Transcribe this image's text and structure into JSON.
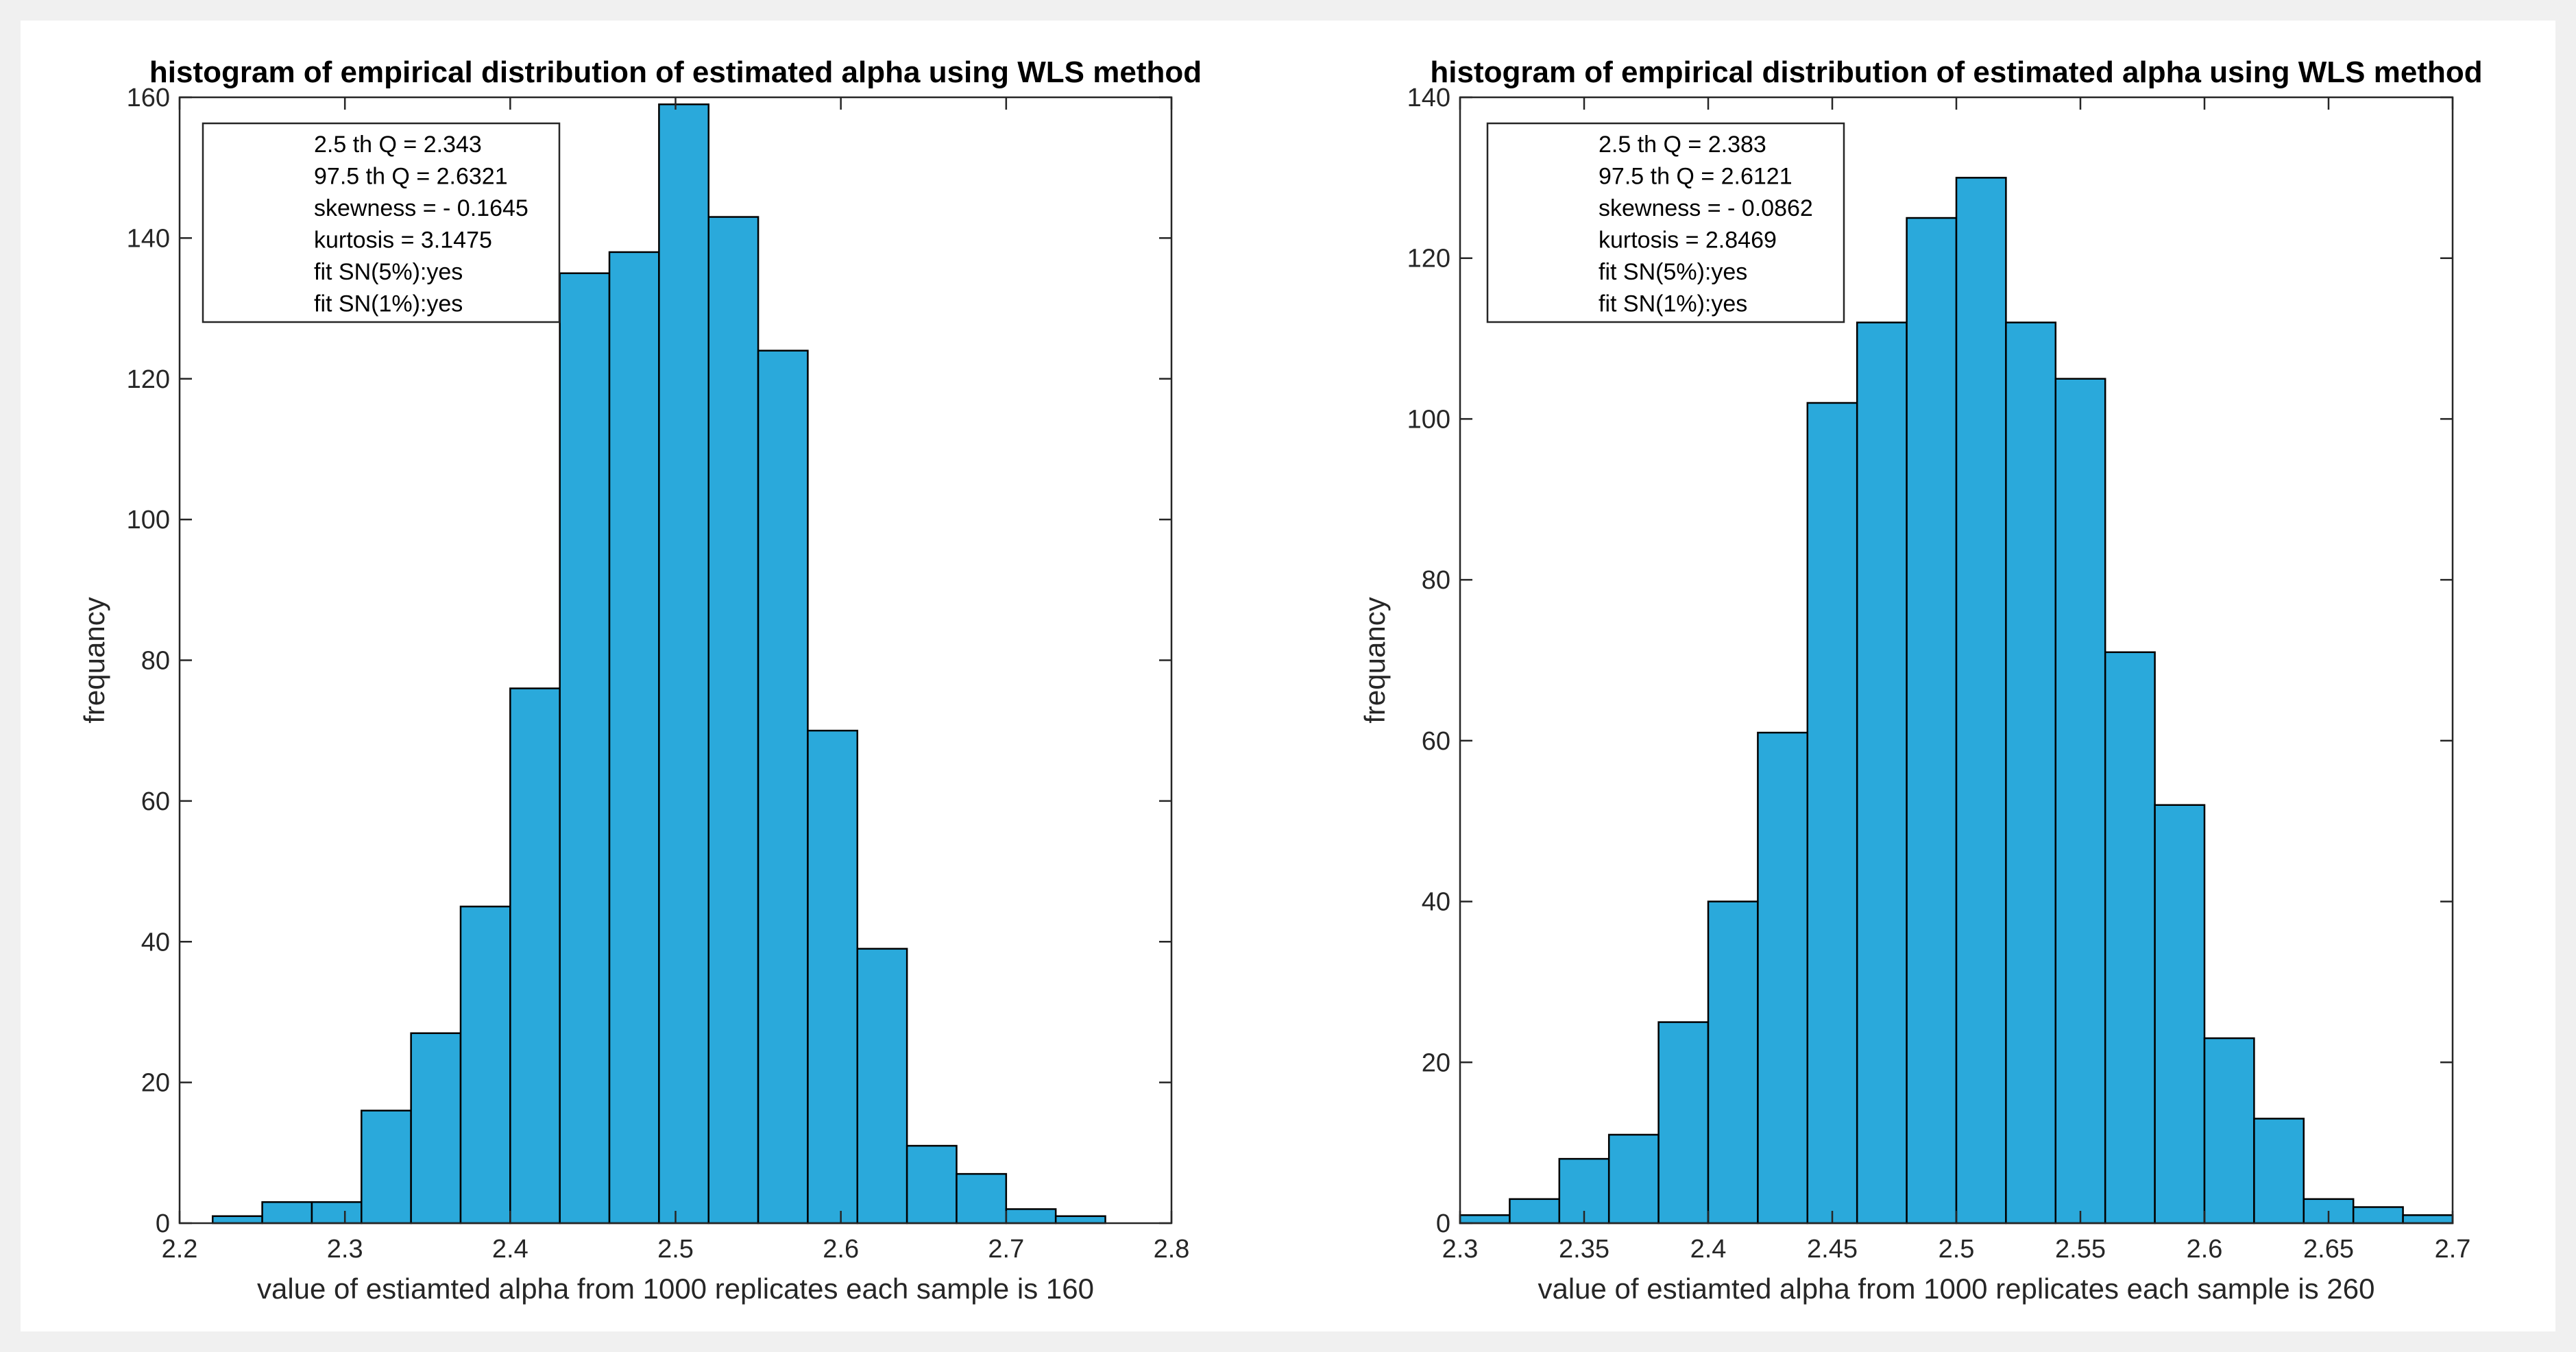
{
  "chart_data": [
    {
      "type": "bar",
      "title": "histogram of empirical distribution of estimated alpha using WLS method",
      "xlabel": "value of estiamted alpha from 1000 replicates each sample is 160",
      "ylabel": "frequancy",
      "xlim": [
        2.2,
        2.8
      ],
      "ylim": [
        0,
        160
      ],
      "xticks": [
        2.2,
        2.3,
        2.4,
        2.5,
        2.6,
        2.7,
        2.8
      ],
      "xtick_labels": [
        "2.2",
        "2.3",
        "2.4",
        "2.5",
        "2.6",
        "2.7",
        "2.8"
      ],
      "yticks": [
        0,
        20,
        40,
        60,
        80,
        100,
        120,
        140,
        160
      ],
      "ytick_labels": [
        "0",
        "20",
        "40",
        "60",
        "80",
        "100",
        "120",
        "140",
        "160"
      ],
      "bin_edges": [
        2.22,
        2.25,
        2.28,
        2.31,
        2.34,
        2.37,
        2.4,
        2.43,
        2.46,
        2.49,
        2.52,
        2.55,
        2.58,
        2.61,
        2.64,
        2.67,
        2.7,
        2.73,
        2.76
      ],
      "values": [
        1,
        3,
        3,
        16,
        27,
        45,
        76,
        135,
        138,
        159,
        143,
        124,
        70,
        39,
        11,
        7,
        2,
        1
      ],
      "bar_color": "#2aa9db",
      "stats": [
        "2.5 th Q = 2.343",
        "97.5 th Q = 2.6321",
        "skewness = - 0.1645",
        "kurtosis = 3.1475",
        "fit SN(5%):yes",
        "fit SN(1%):yes"
      ]
    },
    {
      "type": "bar",
      "title": "histogram of empirical distribution of estimated alpha using WLS method",
      "xlabel": "value of estiamted alpha from 1000 replicates each sample is 260",
      "ylabel": "frequancy",
      "xlim": [
        2.3,
        2.7
      ],
      "ylim": [
        0,
        140
      ],
      "xticks": [
        2.3,
        2.35,
        2.4,
        2.45,
        2.5,
        2.55,
        2.6,
        2.65,
        2.7
      ],
      "xtick_labels": [
        "2.3",
        "2.35",
        "2.4",
        "2.45",
        "2.5",
        "2.55",
        "2.6",
        "2.65",
        "2.7"
      ],
      "yticks": [
        0,
        20,
        40,
        60,
        80,
        100,
        120,
        140
      ],
      "ytick_labels": [
        "0",
        "20",
        "40",
        "60",
        "80",
        "100",
        "120",
        "140"
      ],
      "bin_edges": [
        2.3,
        2.32,
        2.34,
        2.36,
        2.38,
        2.4,
        2.42,
        2.44,
        2.46,
        2.48,
        2.5,
        2.52,
        2.54,
        2.56,
        2.58,
        2.6,
        2.62,
        2.64,
        2.66,
        2.68,
        2.7
      ],
      "values": [
        1,
        3,
        8,
        11,
        25,
        40,
        61,
        102,
        112,
        125,
        130,
        112,
        105,
        71,
        52,
        23,
        13,
        3,
        2,
        1
      ],
      "bar_color": "#2aa9db",
      "stats": [
        "2.5 th Q = 2.383",
        "97.5 th Q = 2.6121",
        "skewness = - 0.0862",
        "kurtosis = 2.8469",
        "fit SN(5%):yes",
        "fit SN(1%):yes"
      ]
    }
  ]
}
